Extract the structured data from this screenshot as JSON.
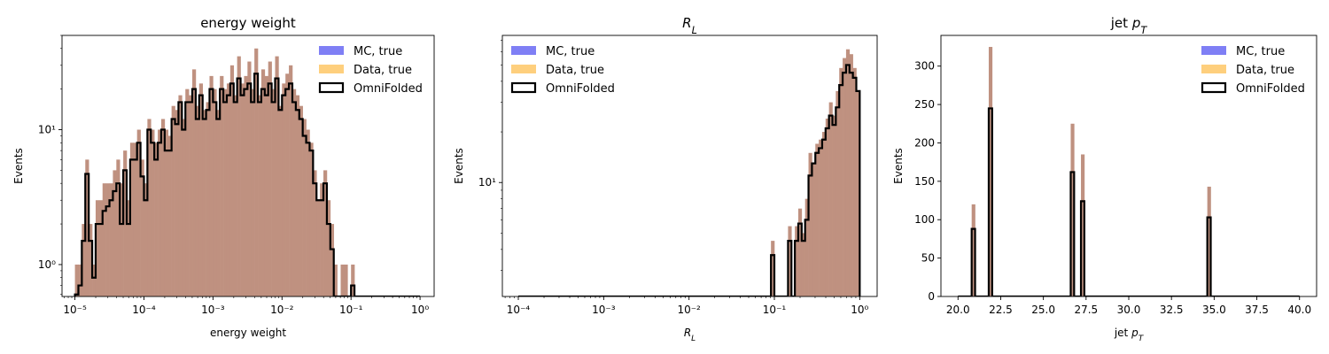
{
  "colors": {
    "mc": "#7f7ff5",
    "data": "#fecf7d",
    "overlap": "#bf9180",
    "omni": "#000000"
  },
  "chart_data": [
    {
      "type": "histogram",
      "title": "energy weight",
      "xlabel": "energy weight",
      "ylabel": "Events",
      "xscale": "log",
      "yscale": "log",
      "xlim": [
        6.5e-06,
        1.6
      ],
      "ylim": [
        0.58,
        50
      ],
      "xticks": [
        1e-05,
        0.0001,
        0.001,
        0.01,
        0.1,
        1
      ],
      "xtick_labels": [
        "10⁻⁵",
        "10⁻⁴",
        "10⁻³",
        "10⁻²",
        "10⁻¹",
        "10⁰"
      ],
      "yticks": [
        1,
        10
      ],
      "ytick_labels": [
        "10⁰",
        "10¹"
      ],
      "legend": [
        "MC, true",
        "Data, true",
        "OmniFolded"
      ],
      "legend_position": "upper-right",
      "bins": {
        "start": 1e-05,
        "end": 1.0,
        "count": 100
      },
      "true_values": [
        1,
        1,
        2,
        6,
        2,
        1,
        3,
        3,
        4,
        4,
        4,
        5,
        6,
        4,
        7,
        3,
        8,
        8,
        10,
        6,
        4,
        12,
        10,
        8,
        10,
        12,
        10,
        9,
        15,
        14,
        18,
        12,
        20,
        18,
        28,
        15,
        22,
        14,
        16,
        25,
        20,
        14,
        25,
        20,
        22,
        30,
        18,
        35,
        22,
        25,
        32,
        20,
        40,
        18,
        28,
        25,
        32,
        20,
        35,
        15,
        22,
        26,
        30,
        20,
        18,
        15,
        12,
        10,
        8,
        5,
        3,
        4,
        5,
        3,
        2,
        1,
        0,
        1,
        1,
        0,
        1,
        0,
        0,
        0,
        0,
        0,
        0,
        0,
        0,
        0,
        0,
        0,
        0,
        0,
        0,
        0,
        0,
        0,
        0,
        0
      ],
      "omni_values": [
        0.6,
        0.7,
        1.5,
        4.7,
        1.5,
        0.8,
        2,
        2,
        2.5,
        2.7,
        3,
        3.5,
        4,
        2,
        5,
        2,
        6,
        6,
        8,
        4.5,
        3,
        10,
        8,
        6,
        8,
        10,
        7,
        7,
        12,
        11,
        16,
        10,
        16,
        16,
        20,
        12,
        18,
        12,
        14,
        20,
        16,
        12,
        20,
        16,
        18,
        22,
        16,
        24,
        18,
        20,
        22,
        16,
        26,
        16,
        20,
        18,
        22,
        16,
        24,
        14,
        18,
        20,
        22,
        16,
        14,
        12,
        9,
        8,
        7,
        4,
        3,
        3,
        4,
        2,
        1.3,
        0.55,
        0,
        0.55,
        0.55,
        0,
        0.7,
        0,
        0,
        0,
        0,
        0,
        0,
        0,
        0,
        0,
        0,
        0,
        0,
        0,
        0,
        0,
        0,
        0,
        0,
        0
      ]
    },
    {
      "type": "histogram",
      "title": "R_L",
      "xlabel": "R_L",
      "ylabel": "Events",
      "xscale": "log",
      "yscale": "log",
      "xlim": [
        6.5e-05,
        1.6
      ],
      "ylim": [
        2.1,
        75
      ],
      "xticks": [
        0.0001,
        0.001,
        0.01,
        0.1,
        1
      ],
      "xtick_labels": [
        "10⁻⁴",
        "10⁻³",
        "10⁻²",
        "10⁻¹",
        "10⁰"
      ],
      "yticks": [
        10
      ],
      "ytick_labels": [
        "10¹"
      ],
      "legend": [
        "MC, true",
        "Data, true",
        "OmniFolded"
      ],
      "legend_position": "upper-left",
      "bins": {
        "start": 0.0001,
        "end": 1.0,
        "count": 100
      },
      "true_values": [
        0,
        0,
        0,
        0,
        0,
        0,
        0,
        0,
        0,
        0,
        0,
        0,
        0,
        0,
        0,
        0,
        0,
        0,
        0,
        0,
        0,
        0,
        0,
        0,
        0,
        0,
        0,
        0,
        0,
        0,
        0,
        0,
        0,
        0,
        0,
        0,
        0,
        0,
        0,
        0,
        0,
        0,
        0,
        0,
        0,
        0,
        0,
        0,
        0,
        0,
        0,
        0,
        0,
        0,
        0,
        0,
        0,
        0,
        0,
        0,
        0,
        0,
        0,
        0,
        0,
        0,
        0,
        0,
        0,
        0,
        0,
        0,
        0,
        0,
        4.5,
        0,
        0,
        0,
        0,
        5.5,
        0,
        5.5,
        7,
        5,
        8,
        15,
        13,
        17,
        18,
        20,
        24,
        30,
        25,
        35,
        48,
        55,
        62,
        58,
        48,
        35,
        25,
        12,
        6,
        0
      ],
      "omni_values": [
        0,
        0,
        0,
        0,
        0,
        0,
        0,
        0,
        0,
        0,
        0,
        0,
        0,
        0,
        0,
        0,
        0,
        0,
        0,
        0,
        0,
        0,
        0,
        0,
        0,
        0,
        0,
        0,
        0,
        0,
        0,
        0,
        0,
        0,
        0,
        0,
        0,
        0,
        0,
        0,
        0,
        0,
        0,
        0,
        0,
        0,
        0,
        0,
        0,
        0,
        0,
        0,
        0,
        0,
        0,
        0,
        0,
        0,
        0,
        0,
        0,
        0,
        0,
        0,
        0,
        0,
        0,
        0,
        0,
        0,
        0,
        0,
        0,
        0,
        3.7,
        0,
        0,
        0,
        0,
        4.5,
        0,
        4.5,
        5.7,
        4.5,
        6,
        11,
        13,
        15,
        16,
        18,
        21,
        25,
        22,
        28,
        38,
        45,
        50,
        45,
        42,
        35,
        22,
        12,
        5,
        0
      ]
    },
    {
      "type": "histogram",
      "title": "jet p_T",
      "xlabel": "jet p_T",
      "ylabel": "Events",
      "xscale": "linear",
      "yscale": "linear",
      "xlim": [
        19.0,
        41.0
      ],
      "ylim": [
        0,
        340
      ],
      "xticks": [
        20,
        22.5,
        25,
        27.5,
        30,
        32.5,
        35,
        37.5,
        40
      ],
      "xtick_labels": [
        "20.0",
        "22.5",
        "25.0",
        "27.5",
        "30.0",
        "32.5",
        "35.0",
        "37.5",
        "40.0"
      ],
      "yticks": [
        0,
        50,
        100,
        150,
        200,
        250,
        300
      ],
      "ytick_labels": [
        "0",
        "50",
        "100",
        "150",
        "200",
        "250",
        "300"
      ],
      "legend": [
        "MC, true",
        "Data, true",
        "OmniFolded"
      ],
      "legend_position": "upper-right",
      "bins": {
        "start": 20,
        "end": 40,
        "count": 100
      },
      "true_values": [
        0,
        0,
        0,
        0,
        120,
        0,
        0,
        0,
        0,
        325,
        0,
        0,
        0,
        0,
        0,
        0,
        0,
        0,
        0,
        0,
        0,
        0,
        0,
        0,
        0,
        0,
        0,
        0,
        0,
        0,
        0,
        0,
        0,
        225,
        0,
        0,
        185,
        0,
        0,
        0,
        0,
        0,
        0,
        0,
        0,
        0,
        0,
        0,
        0,
        0,
        0,
        0,
        0,
        0,
        0,
        0,
        0,
        0,
        0,
        0,
        0,
        0,
        0,
        0,
        0,
        0,
        0,
        0,
        0,
        0,
        0,
        0,
        0,
        143,
        0,
        0,
        0,
        0,
        0,
        0,
        0,
        0,
        0,
        0,
        0,
        0,
        0,
        0,
        0,
        0,
        0,
        0,
        0,
        0,
        0,
        0,
        0,
        0,
        0,
        0
      ],
      "omni_values": [
        0,
        0,
        0,
        0,
        88,
        0,
        0,
        0,
        0,
        245,
        0,
        0,
        0,
        0,
        0,
        0,
        0,
        0,
        0,
        0,
        0,
        0,
        0,
        0,
        0,
        0,
        0,
        0,
        0,
        0,
        0,
        0,
        0,
        162,
        0,
        0,
        124,
        0,
        0,
        0,
        0,
        0,
        0,
        0,
        0,
        0,
        0,
        0,
        0,
        0,
        0,
        0,
        0,
        0,
        0,
        0,
        0,
        0,
        0,
        0,
        0,
        0,
        0,
        0,
        0,
        0,
        0,
        0,
        0,
        0,
        0,
        0,
        0,
        103,
        0,
        0,
        0,
        0,
        0,
        0,
        0,
        0,
        0,
        0,
        0,
        0,
        0,
        0,
        0,
        0,
        0,
        0,
        0,
        0,
        0,
        0,
        0,
        0,
        0,
        0
      ]
    }
  ]
}
